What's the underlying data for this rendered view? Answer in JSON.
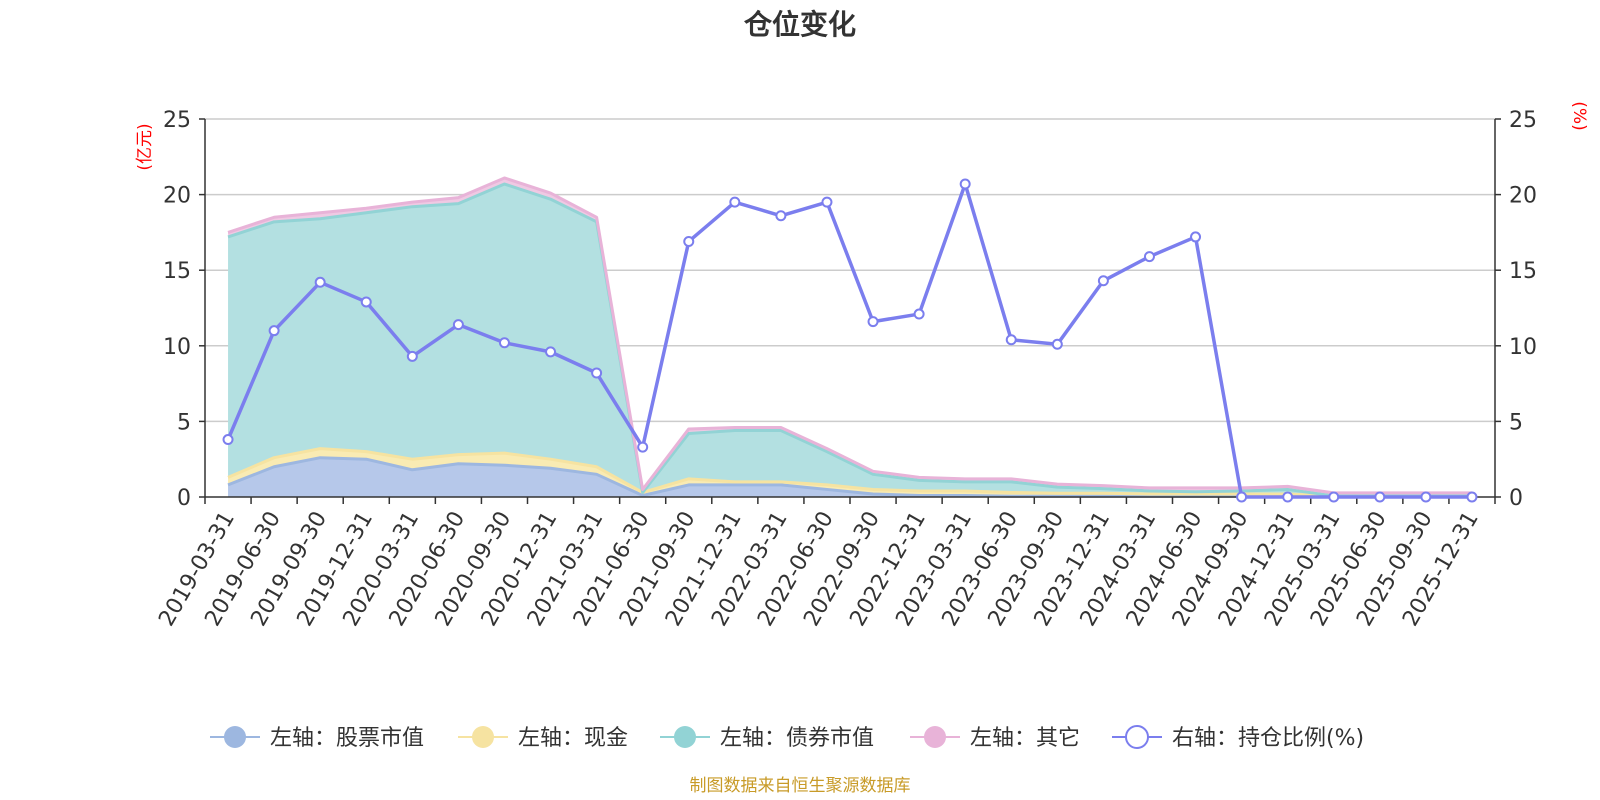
{
  "chart_data": {
    "type": "area",
    "title": "仓位变化",
    "left_unit": "(亿元)",
    "right_unit": "(%)",
    "left_ylim": [
      0,
      25
    ],
    "right_ylim": [
      0,
      25
    ],
    "yticks": [
      0,
      5,
      10,
      15,
      20,
      25
    ],
    "grid": true,
    "legend_position": "bottom",
    "categories": [
      "2019-03-31",
      "2019-06-30",
      "2019-09-30",
      "2019-12-31",
      "2020-03-31",
      "2020-06-30",
      "2020-09-30",
      "2020-12-31",
      "2021-03-31",
      "2021-06-30",
      "2021-09-30",
      "2021-12-31",
      "2022-03-31",
      "2022-06-30",
      "2022-09-30",
      "2022-12-31",
      "2023-03-31",
      "2023-06-30",
      "2023-09-30",
      "2023-12-31",
      "2024-03-31",
      "2024-06-30",
      "2024-09-30",
      "2024-12-31",
      "2025-03-31",
      "2025-06-30",
      "2025-09-30",
      "2025-12-31"
    ],
    "series": [
      {
        "name": "左轴：股票市值",
        "axis": "left",
        "kind": "stack-area",
        "color": "#9db7e0",
        "fill": "#b6c8ea",
        "values": [
          0.8,
          2.0,
          2.6,
          2.5,
          1.8,
          2.2,
          2.1,
          1.9,
          1.5,
          0.1,
          0.8,
          0.8,
          0.8,
          0.5,
          0.2,
          0.1,
          0.1,
          0.05,
          0.05,
          0.05,
          0.05,
          0.05,
          0.05,
          0.05,
          0.02,
          0.02,
          0.02,
          0.02
        ]
      },
      {
        "name": "左轴：现金",
        "axis": "left",
        "kind": "stack-area",
        "color": "#f6e3a1",
        "fill": "#f9ebb3",
        "values": [
          0.5,
          0.6,
          0.6,
          0.5,
          0.7,
          0.6,
          0.8,
          0.6,
          0.5,
          0.2,
          0.4,
          0.2,
          0.2,
          0.3,
          0.3,
          0.3,
          0.3,
          0.25,
          0.2,
          0.2,
          0.15,
          0.15,
          0.15,
          0.15,
          0.05,
          0.05,
          0.05,
          0.05
        ]
      },
      {
        "name": "左轴：债券市值",
        "axis": "left",
        "kind": "stack-area",
        "color": "#92d3d5",
        "fill": "#b3e0e1",
        "values": [
          15.9,
          15.6,
          15.2,
          15.8,
          16.7,
          16.6,
          17.8,
          17.2,
          16.2,
          0.0,
          3.0,
          3.4,
          3.4,
          2.2,
          1.0,
          0.7,
          0.6,
          0.7,
          0.4,
          0.3,
          0.2,
          0.15,
          0.2,
          0.3,
          0.0,
          0.0,
          0.0,
          0.0
        ]
      },
      {
        "name": "左轴：其它",
        "axis": "left",
        "kind": "stack-area",
        "color": "#e8b3d8",
        "fill": "#efc9e3",
        "values": [
          0.3,
          0.3,
          0.4,
          0.3,
          0.3,
          0.4,
          0.4,
          0.4,
          0.3,
          0.2,
          0.3,
          0.2,
          0.2,
          0.2,
          0.2,
          0.2,
          0.2,
          0.2,
          0.2,
          0.2,
          0.2,
          0.25,
          0.2,
          0.2,
          0.2,
          0.2,
          0.2,
          0.2
        ]
      },
      {
        "name": "右轴：持仓比例(%)",
        "axis": "right",
        "kind": "line",
        "color": "#7b7eee",
        "values": [
          3.8,
          11.0,
          14.2,
          12.9,
          9.3,
          11.4,
          10.2,
          9.6,
          8.2,
          3.3,
          16.9,
          19.5,
          18.6,
          19.5,
          11.6,
          12.1,
          20.7,
          10.4,
          10.1,
          14.3,
          15.9,
          17.2,
          0.0,
          0.0,
          0.0,
          0.0,
          0.0,
          0.0
        ]
      }
    ]
  },
  "footer": {
    "source": "制图数据来自恒生聚源数据库"
  }
}
